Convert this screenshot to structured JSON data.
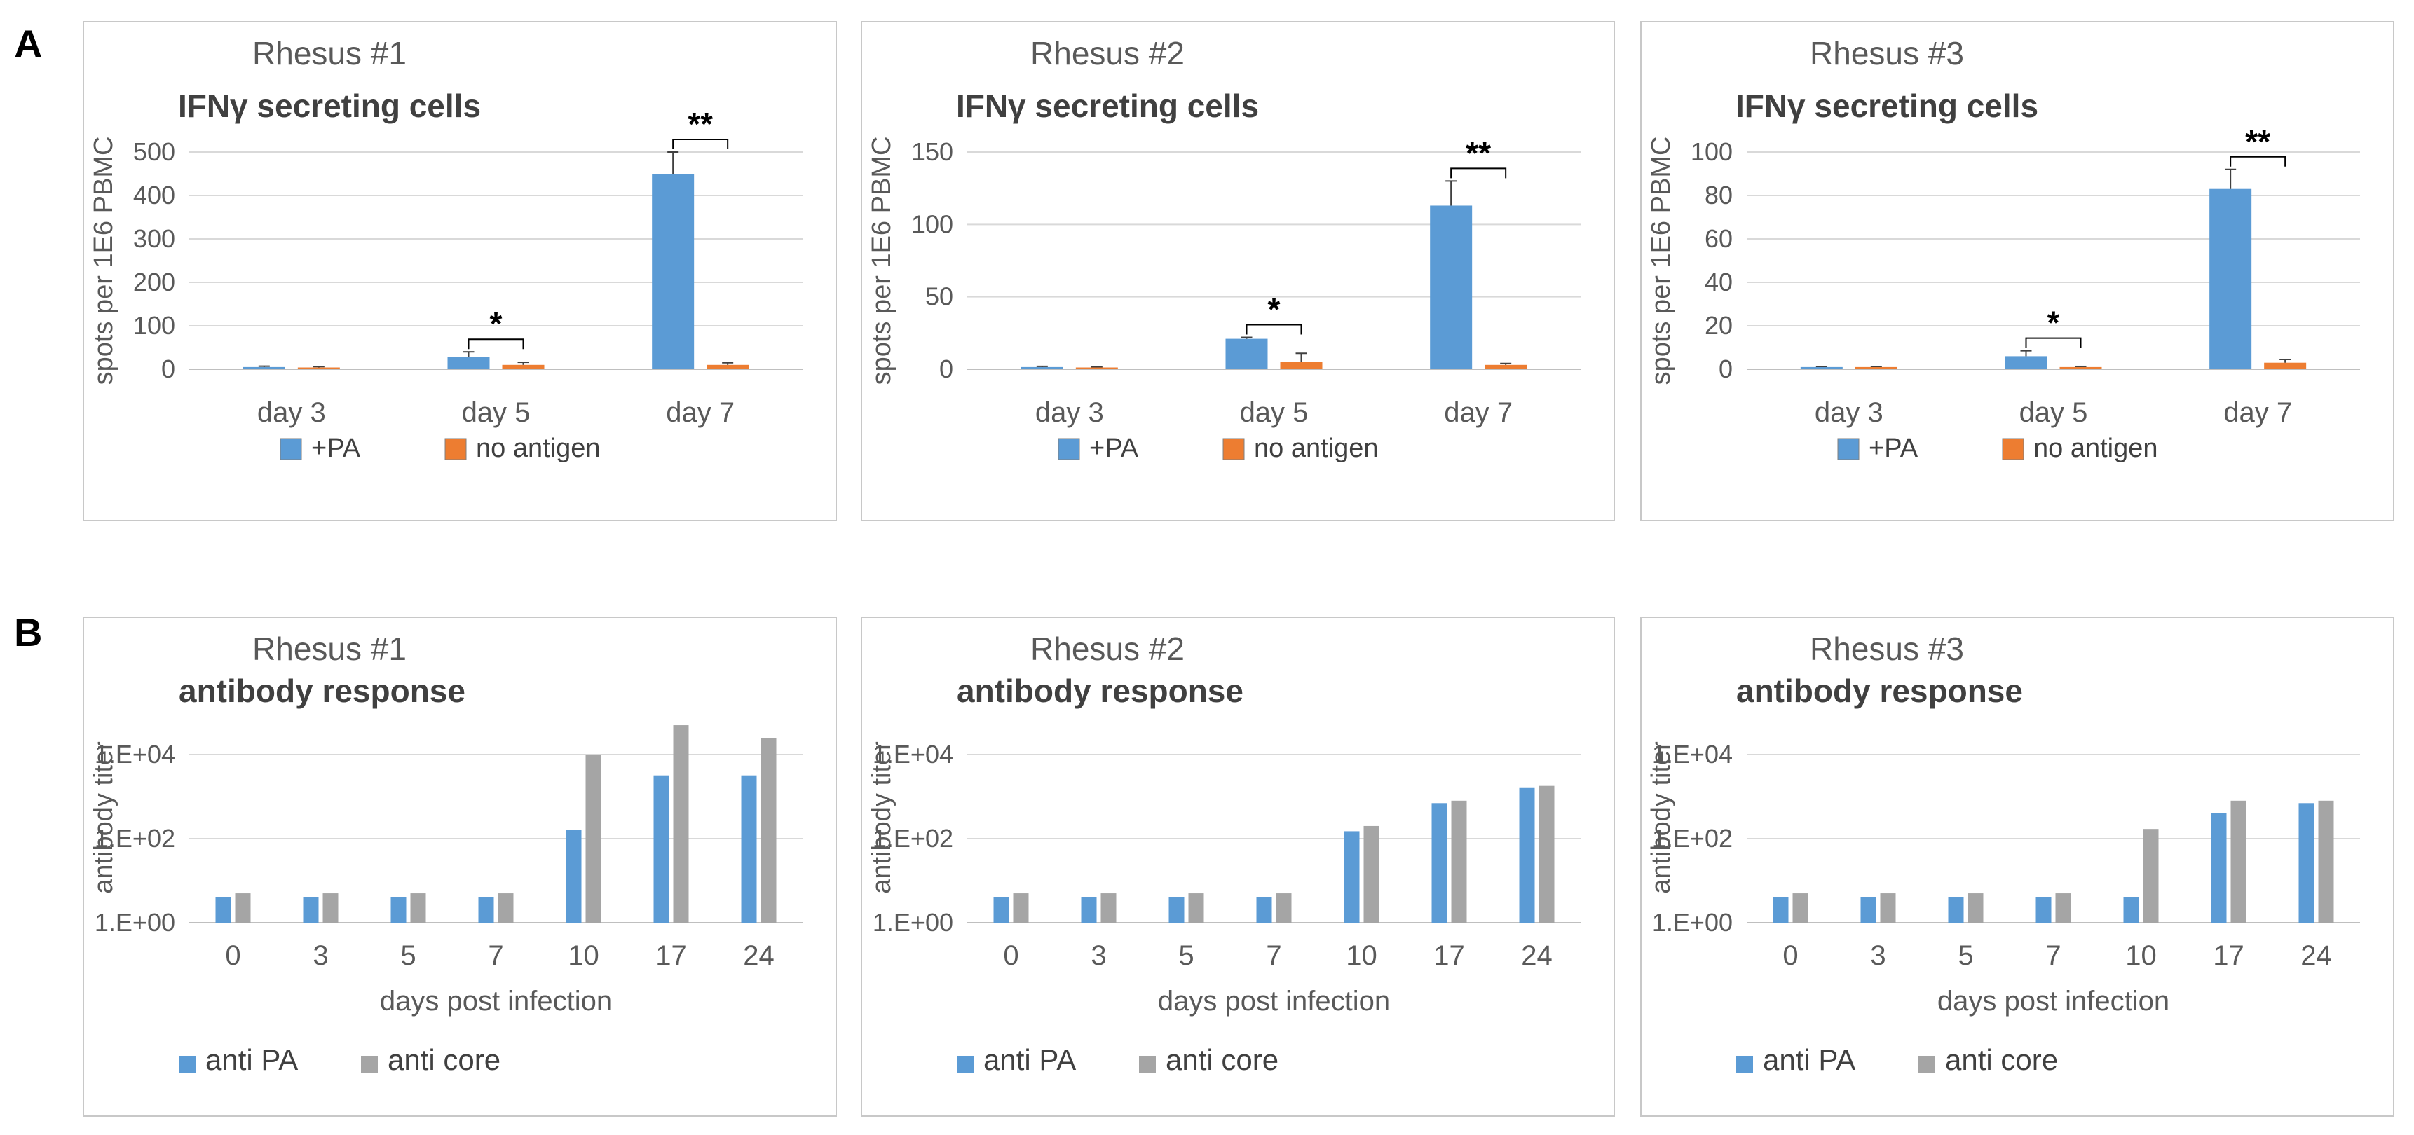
{
  "panel_letters": {
    "a": "A",
    "b": "B"
  },
  "colors": {
    "pa": "#5b9bd5",
    "noag": "#ed7d31",
    "core": "#a5a5a5",
    "grid": "#d9d9d9",
    "axis": "#bfbfbf"
  },
  "chart_data": [
    {
      "type": "bar",
      "title": "Rhesus #1",
      "subtitle": "IFNγ secreting cells",
      "ylabel": "spots per 1E6 PBMC",
      "xlabel": "",
      "categories": [
        "day 3",
        "day 5",
        "day 7"
      ],
      "ylim": [
        0,
        500
      ],
      "yticks": [
        0,
        100,
        200,
        300,
        400,
        500
      ],
      "series": [
        {
          "name": "+PA",
          "values": [
            5,
            28,
            450
          ],
          "errors": [
            2,
            12,
            50
          ]
        },
        {
          "name": "no antigen",
          "values": [
            4,
            10,
            10
          ],
          "errors": [
            2,
            6,
            5
          ]
        }
      ],
      "significance": [
        "",
        "*",
        "**"
      ]
    },
    {
      "type": "bar",
      "title": "Rhesus #2",
      "subtitle": "IFNγ secreting cells",
      "ylabel": "spots per 1E6 PBMC",
      "xlabel": "",
      "categories": [
        "day 3",
        "day 5",
        "day 7"
      ],
      "ylim": [
        0,
        150
      ],
      "yticks": [
        0,
        50,
        100,
        150
      ],
      "series": [
        {
          "name": "+PA",
          "values": [
            1.5,
            21,
            113
          ],
          "errors": [
            0.5,
            1,
            17
          ]
        },
        {
          "name": "no antigen",
          "values": [
            1.2,
            5,
            3
          ],
          "errors": [
            0.5,
            6,
            1
          ]
        }
      ],
      "significance": [
        "",
        "*",
        "**"
      ]
    },
    {
      "type": "bar",
      "title": "Rhesus #3",
      "subtitle": "IFNγ secreting cells",
      "ylabel": "spots per 1E6 PBMC",
      "xlabel": "",
      "categories": [
        "day 3",
        "day 5",
        "day 7"
      ],
      "ylim": [
        0,
        100
      ],
      "yticks": [
        0,
        20,
        40,
        60,
        80,
        100
      ],
      "series": [
        {
          "name": "+PA",
          "values": [
            1,
            6,
            83
          ],
          "errors": [
            0.3,
            2.5,
            9
          ]
        },
        {
          "name": "no antigen",
          "values": [
            1,
            1,
            3
          ],
          "errors": [
            0.3,
            0.3,
            1.5
          ]
        }
      ],
      "significance": [
        "",
        "*",
        "**"
      ]
    },
    {
      "type": "bar",
      "scale": "log",
      "title": "Rhesus #1",
      "subtitle": "antibody  response",
      "ylabel": "antibody titer",
      "xlabel": "days post infection",
      "categories": [
        "0",
        "3",
        "5",
        "7",
        "10",
        "17",
        "24"
      ],
      "ylim": [
        1,
        100000
      ],
      "yticks": [
        1,
        100,
        10000
      ],
      "ytick_labels": [
        "1.E+00",
        "1.E+02",
        "1.E+04"
      ],
      "series": [
        {
          "name": "anti PA",
          "values": [
            4,
            4,
            4,
            4,
            160,
            3200,
            3200
          ]
        },
        {
          "name": "anti core",
          "values": [
            5,
            5,
            5,
            5,
            10000,
            50000,
            25000
          ]
        }
      ]
    },
    {
      "type": "bar",
      "scale": "log",
      "title": "Rhesus #2",
      "subtitle": "antibody  response",
      "ylabel": "antibody titer",
      "xlabel": "days post infection",
      "categories": [
        "0",
        "3",
        "5",
        "7",
        "10",
        "17",
        "24"
      ],
      "ylim": [
        1,
        100000
      ],
      "yticks": [
        1,
        100,
        10000
      ],
      "ytick_labels": [
        "1.E+00",
        "1.E+02",
        "1.E+04"
      ],
      "series": [
        {
          "name": "anti PA",
          "values": [
            4,
            4,
            4,
            4,
            150,
            700,
            1600
          ]
        },
        {
          "name": "anti core",
          "values": [
            5,
            5,
            5,
            5,
            200,
            800,
            1800
          ]
        }
      ]
    },
    {
      "type": "bar",
      "scale": "log",
      "title": "Rhesus #3",
      "subtitle": "antibody  response",
      "ylabel": "antibody titer",
      "xlabel": "days post infection",
      "categories": [
        "0",
        "3",
        "5",
        "7",
        "10",
        "17",
        "24"
      ],
      "ylim": [
        1,
        100000
      ],
      "yticks": [
        1,
        100,
        10000
      ],
      "ytick_labels": [
        "1.E+00",
        "1.E+02",
        "1.E+04"
      ],
      "series": [
        {
          "name": "anti PA",
          "values": [
            4,
            4,
            4,
            4,
            4,
            400,
            700
          ]
        },
        {
          "name": "anti core",
          "values": [
            5,
            5,
            5,
            5,
            170,
            800,
            800
          ]
        }
      ]
    }
  ]
}
